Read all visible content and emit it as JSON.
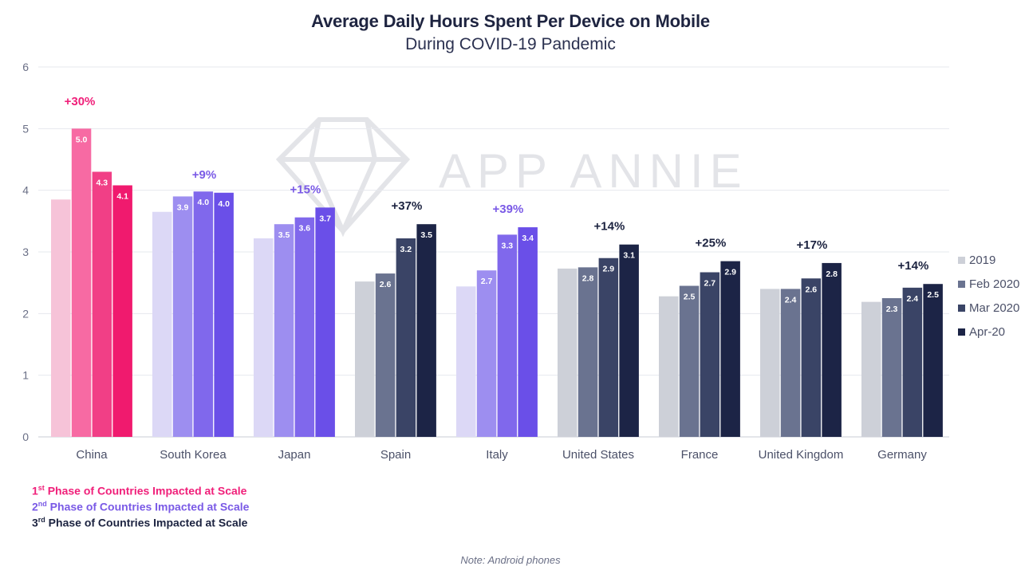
{
  "chart_data": {
    "type": "bar",
    "title": "Average Daily Hours Spent Per Device on Mobile",
    "subtitle": "During COVID-19 Pandemic",
    "xlabel": "",
    "ylabel": "",
    "ylim": [
      0,
      6
    ],
    "yticks": [
      0,
      1,
      2,
      3,
      4,
      5,
      6
    ],
    "grid": true,
    "legend_position": "right",
    "categories": [
      "China",
      "South Korea",
      "Japan",
      "Spain",
      "Italy",
      "United States",
      "France",
      "United Kingdom",
      "Germany"
    ],
    "series": [
      {
        "name": "2019",
        "values": [
          3.85,
          3.65,
          3.22,
          2.52,
          2.44,
          2.73,
          2.28,
          2.4,
          2.19
        ],
        "labels": [
          "",
          "",
          "",
          "",
          "",
          "",
          "",
          "",
          ""
        ]
      },
      {
        "name": "Feb 2020",
        "values": [
          5.0,
          3.9,
          3.45,
          2.65,
          2.7,
          2.75,
          2.45,
          2.4,
          2.25
        ],
        "labels": [
          "5.0",
          "3.9",
          "3.5",
          "2.6",
          "2.7",
          "2.8",
          "2.5",
          "2.4",
          "2.3"
        ]
      },
      {
        "name": "Mar 2020",
        "values": [
          4.3,
          3.98,
          3.56,
          3.22,
          3.28,
          2.9,
          2.67,
          2.57,
          2.42
        ],
        "labels": [
          "4.3",
          "4.0",
          "3.6",
          "3.2",
          "3.3",
          "2.9",
          "2.7",
          "2.6",
          "2.4"
        ]
      },
      {
        "name": "Apr-20",
        "values": [
          4.08,
          3.96,
          3.72,
          3.45,
          3.4,
          3.12,
          2.85,
          2.82,
          2.48
        ],
        "labels": [
          "4.1",
          "4.0",
          "3.7",
          "3.5",
          "3.4",
          "3.1",
          "2.9",
          "2.8",
          "2.5"
        ]
      }
    ],
    "legend_labels": [
      "2019",
      "Feb 2020",
      "Mar 2020",
      "Apr-20"
    ],
    "growth_labels": [
      "+30%",
      "+9%",
      "+15%",
      "+37%",
      "+39%",
      "+14%",
      "+25%",
      "+17%",
      "+14%"
    ],
    "phase": [
      1,
      2,
      2,
      3,
      2,
      3,
      3,
      3,
      3
    ],
    "colors": {
      "phase1": [
        "#f6c3d8",
        "#f76aa3",
        "#f13f86",
        "#f01a6e"
      ],
      "phase2": [
        "#dcd8f6",
        "#9d8ef0",
        "#8068ec",
        "#6a4fe8"
      ],
      "phase3": [
        "#cdd0d8",
        "#6a7390",
        "#3a4466",
        "#1c2446"
      ],
      "growth1": "#f0207a",
      "growth2": "#7a5ae6",
      "growth3": "#1c2340"
    }
  },
  "footer": {
    "phase1_num": "1",
    "phase1_sup": "st",
    "phase1_text": " Phase of Countries Impacted at Scale",
    "phase2_num": "2",
    "phase2_sup": "nd",
    "phase2_text": " Phase of Countries Impacted at Scale",
    "phase3_num": "3",
    "phase3_sup": "rd",
    "phase3_text": " Phase of Countries Impacted at Scale",
    "note": "Note: Android phones"
  },
  "watermark": {
    "brand": "APP ANNIE"
  }
}
